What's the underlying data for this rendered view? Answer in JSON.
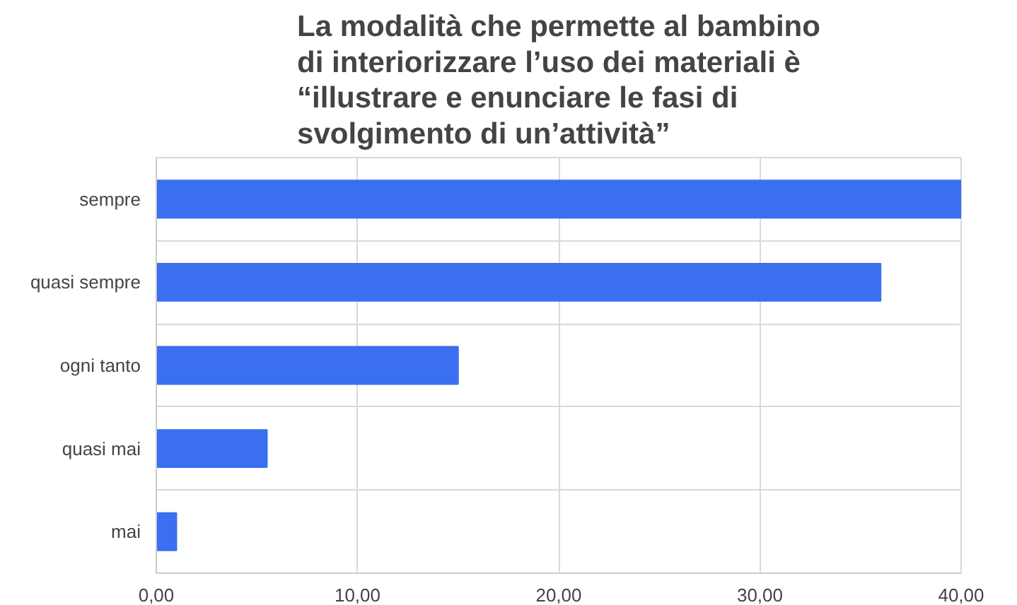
{
  "chart_data": {
    "type": "bar",
    "orientation": "horizontal",
    "title": "La modalità che permette al bambino\ndi interiorizzare l’uso dei materiali è\n“illustrare e enunciare le fasi di\nsvolgimento di un’attività”",
    "categories": [
      "sempre",
      "quasi sempre",
      "ogni tanto",
      "quasi mai",
      "mai"
    ],
    "values": [
      40,
      36,
      15,
      5.5,
      1
    ],
    "color": "#3a6ff0",
    "xlim": [
      0,
      40
    ],
    "xticks": [
      {
        "value": 0,
        "label": "0,00"
      },
      {
        "value": 10,
        "label": "10,00"
      },
      {
        "value": 20,
        "label": "20,00"
      },
      {
        "value": 30,
        "label": "30,00"
      },
      {
        "value": 40,
        "label": "40,00"
      }
    ],
    "grid": true
  }
}
